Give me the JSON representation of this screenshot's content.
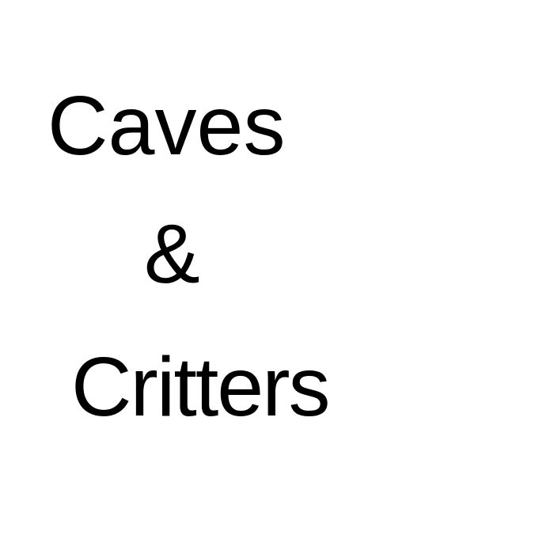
{
  "title": {
    "line1": "Caves",
    "line2": "&",
    "line3": "Critters"
  },
  "colors": {
    "background": "#ffffff",
    "text": "#000000"
  }
}
